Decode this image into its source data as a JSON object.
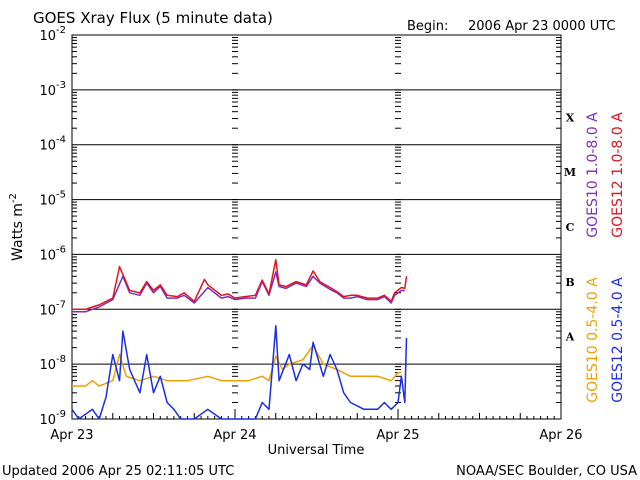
{
  "header": {
    "title": "GOES Xray Flux (5 minute data)",
    "begin_label": "Begin:",
    "begin_value": "2006 Apr 23 0000 UTC"
  },
  "footer": {
    "updated": "Updated 2006 Apr 25 02:11:05 UTC",
    "credit": "NOAA/SEC Boulder, CO USA"
  },
  "chart_data": {
    "type": "line",
    "title": "GOES Xray Flux (5 minute data)",
    "xlabel": "Universal Time",
    "ylabel": "Watts m",
    "ylabel_sup": "-2",
    "yscale": "log",
    "ylim": [
      1e-09,
      0.01
    ],
    "x_ticks": [
      "Apr 23",
      "Apr 24",
      "Apr 25",
      "Apr 26"
    ],
    "xlim": [
      "2006-04-23T00:00",
      "2006-04-26T00:00"
    ],
    "y_ticks": [
      {
        "base": "10",
        "exp": "-2"
      },
      {
        "base": "10",
        "exp": "-3"
      },
      {
        "base": "10",
        "exp": "-4"
      },
      {
        "base": "10",
        "exp": "-5"
      },
      {
        "base": "10",
        "exp": "-6"
      },
      {
        "base": "10",
        "exp": "-7"
      },
      {
        "base": "10",
        "exp": "-8"
      },
      {
        "base": "10",
        "exp": "-9"
      }
    ],
    "flare_classes": [
      "X",
      "M",
      "C",
      "B",
      "A"
    ],
    "legend_placement": "right",
    "grid": true,
    "colors": {
      "goes10_long": "#7b2fbf",
      "goes12_long": "#e0141e",
      "goes10_short": "#f0a000",
      "goes12_short": "#1a2ee6"
    },
    "series": [
      {
        "name": "GOES10 1.0-8.0 A",
        "color_key": "goes10_long",
        "x": [
          "2006-04-23T00:00",
          "2006-04-23T02:00",
          "2006-04-23T03:00",
          "2006-04-23T04:00",
          "2006-04-23T06:00",
          "2006-04-23T07:30",
          "2006-04-23T08:30",
          "2006-04-23T10:00",
          "2006-04-23T11:00",
          "2006-04-23T12:00",
          "2006-04-23T13:00",
          "2006-04-23T14:00",
          "2006-04-23T15:30",
          "2006-04-23T16:30",
          "2006-04-23T18:00",
          "2006-04-23T20:00",
          "2006-04-23T22:00",
          "2006-04-23T23:00",
          "2006-04-24T00:00",
          "2006-04-24T01:30",
          "2006-04-24T03:00",
          "2006-04-24T04:00",
          "2006-04-24T05:00",
          "2006-04-24T06:00",
          "2006-04-24T06:30",
          "2006-04-24T07:30",
          "2006-04-24T09:00",
          "2006-04-24T10:30",
          "2006-04-24T11:30",
          "2006-04-24T12:30",
          "2006-04-24T14:00",
          "2006-04-24T15:00",
          "2006-04-24T16:00",
          "2006-04-24T17:00",
          "2006-04-24T18:00",
          "2006-04-24T19:30",
          "2006-04-24T21:00",
          "2006-04-24T22:00",
          "2006-04-24T23:00",
          "2006-04-24T23:30",
          "2006-04-25T00:30",
          "2006-04-25T01:00"
        ],
        "values": [
          9e-08,
          9e-08,
          1e-07,
          1.1e-07,
          1.5e-07,
          4e-07,
          2e-07,
          1.8e-07,
          3e-07,
          2e-07,
          2.6e-07,
          1.6e-07,
          1.6e-07,
          1.8e-07,
          1.3e-07,
          2.5e-07,
          1.6e-07,
          1.7e-07,
          1.5e-07,
          1.6e-07,
          1.6e-07,
          3.2e-07,
          1.8e-07,
          4.8e-07,
          2.6e-07,
          2.4e-07,
          3e-07,
          2.6e-07,
          4e-07,
          3e-07,
          2.3e-07,
          2e-07,
          1.6e-07,
          1.6e-07,
          1.7e-07,
          1.5e-07,
          1.5e-07,
          1.7e-07,
          1.3e-07,
          1.8e-07,
          2.2e-07,
          2.2e-07
        ]
      },
      {
        "name": "GOES12 1.0-8.0 A",
        "color_key": "goes12_long",
        "x": [
          "2006-04-23T00:00",
          "2006-04-23T02:00",
          "2006-04-23T03:00",
          "2006-04-23T04:00",
          "2006-04-23T06:00",
          "2006-04-23T07:00",
          "2006-04-23T08:30",
          "2006-04-23T10:00",
          "2006-04-23T11:00",
          "2006-04-23T12:00",
          "2006-04-23T13:00",
          "2006-04-23T14:00",
          "2006-04-23T15:30",
          "2006-04-23T16:30",
          "2006-04-23T18:00",
          "2006-04-23T19:30",
          "2006-04-23T20:00",
          "2006-04-23T22:00",
          "2006-04-23T23:00",
          "2006-04-24T00:00",
          "2006-04-24T01:30",
          "2006-04-24T03:00",
          "2006-04-24T04:00",
          "2006-04-24T05:00",
          "2006-04-24T06:00",
          "2006-04-24T06:30",
          "2006-04-24T07:30",
          "2006-04-24T09:00",
          "2006-04-24T10:30",
          "2006-04-24T11:30",
          "2006-04-24T12:30",
          "2006-04-24T14:00",
          "2006-04-24T15:00",
          "2006-04-24T16:00",
          "2006-04-24T17:00",
          "2006-04-24T18:00",
          "2006-04-24T19:30",
          "2006-04-24T21:00",
          "2006-04-24T22:00",
          "2006-04-24T23:00",
          "2006-04-24T23:30",
          "2006-04-25T00:30",
          "2006-04-25T01:00",
          "2006-04-25T01:15"
        ],
        "values": [
          1e-07,
          1e-07,
          1.1e-07,
          1.2e-07,
          1.6e-07,
          6e-07,
          2.2e-07,
          2e-07,
          3.2e-07,
          2.2e-07,
          2.8e-07,
          1.8e-07,
          1.7e-07,
          2e-07,
          1.4e-07,
          3.5e-07,
          2.8e-07,
          1.8e-07,
          1.9e-07,
          1.6e-07,
          1.7e-07,
          1.8e-07,
          3.4e-07,
          1.9e-07,
          8e-07,
          2.8e-07,
          2.6e-07,
          3.2e-07,
          2.8e-07,
          5e-07,
          3.2e-07,
          2.5e-07,
          2.1e-07,
          1.7e-07,
          1.8e-07,
          1.8e-07,
          1.6e-07,
          1.6e-07,
          1.8e-07,
          1.4e-07,
          2e-07,
          2.5e-07,
          2.4e-07,
          4e-07
        ]
      },
      {
        "name": "GOES10 0.5-4.0 A",
        "color_key": "goes10_short",
        "x": [
          "2006-04-23T00:00",
          "2006-04-23T02:00",
          "2006-04-23T03:00",
          "2006-04-23T04:00",
          "2006-04-23T06:00",
          "2006-04-23T07:00",
          "2006-04-23T08:00",
          "2006-04-23T10:00",
          "2006-04-23T12:00",
          "2006-04-23T14:00",
          "2006-04-23T17:00",
          "2006-04-23T20:00",
          "2006-04-23T22:00",
          "2006-04-24T00:00",
          "2006-04-24T02:00",
          "2006-04-24T04:00",
          "2006-04-24T05:00",
          "2006-04-24T06:00",
          "2006-04-24T07:00",
          "2006-04-24T08:00",
          "2006-04-24T10:00",
          "2006-04-24T11:30",
          "2006-04-24T13:00",
          "2006-04-24T15:00",
          "2006-04-24T17:00",
          "2006-04-24T19:00",
          "2006-04-24T21:00",
          "2006-04-24T23:00",
          "2006-04-25T00:00",
          "2006-04-25T00:30"
        ],
        "values": [
          4e-09,
          4e-09,
          5e-09,
          4e-09,
          5e-09,
          1.5e-08,
          6e-09,
          5e-09,
          6e-09,
          5e-09,
          5e-09,
          6e-09,
          5e-09,
          5e-09,
          5e-09,
          6e-09,
          5e-09,
          1.4e-08,
          8e-09,
          1e-08,
          1.2e-08,
          2.2e-08,
          1e-08,
          8e-09,
          6e-09,
          6e-09,
          6e-09,
          5e-09,
          7e-09,
          7e-09
        ]
      },
      {
        "name": "GOES12 0.5-4.0 A",
        "color_key": "goes12_short",
        "x": [
          "2006-04-23T00:00",
          "2006-04-23T01:00",
          "2006-04-23T03:00",
          "2006-04-23T04:00",
          "2006-04-23T05:00",
          "2006-04-23T06:00",
          "2006-04-23T07:00",
          "2006-04-23T07:30",
          "2006-04-23T08:30",
          "2006-04-23T10:00",
          "2006-04-23T11:00",
          "2006-04-23T12:00",
          "2006-04-23T13:00",
          "2006-04-23T14:00",
          "2006-04-23T15:00",
          "2006-04-23T16:00",
          "2006-04-23T18:00",
          "2006-04-23T20:00",
          "2006-04-23T22:00",
          "2006-04-24T00:00",
          "2006-04-24T01:00",
          "2006-04-24T03:00",
          "2006-04-24T04:00",
          "2006-04-24T05:00",
          "2006-04-24T06:00",
          "2006-04-24T06:30",
          "2006-04-24T08:00",
          "2006-04-24T09:00",
          "2006-04-24T10:00",
          "2006-04-24T11:00",
          "2006-04-24T11:30",
          "2006-04-24T13:00",
          "2006-04-24T14:00",
          "2006-04-24T15:00",
          "2006-04-24T16:00",
          "2006-04-24T17:00",
          "2006-04-24T19:00",
          "2006-04-24T21:00",
          "2006-04-24T22:00",
          "2006-04-24T23:00",
          "2006-04-25T00:00",
          "2006-04-25T00:30",
          "2006-04-25T01:00",
          "2006-04-25T01:15"
        ],
        "values": [
          1.5e-09,
          1e-09,
          1.5e-09,
          1e-09,
          2.5e-09,
          1.5e-08,
          5e-09,
          4e-08,
          8e-09,
          3e-09,
          1.5e-08,
          3e-09,
          6e-09,
          2e-09,
          1.5e-09,
          1e-09,
          1e-09,
          1.5e-09,
          1e-09,
          1e-09,
          1e-09,
          1e-09,
          2e-09,
          1.5e-09,
          5e-08,
          5e-09,
          1.5e-08,
          5e-09,
          1e-08,
          8e-09,
          2.5e-08,
          6e-09,
          1.5e-08,
          8e-09,
          3e-09,
          2e-09,
          1.5e-09,
          1.5e-09,
          2e-09,
          1.5e-09,
          2e-09,
          6e-09,
          2e-09,
          3e-08
        ]
      }
    ]
  }
}
